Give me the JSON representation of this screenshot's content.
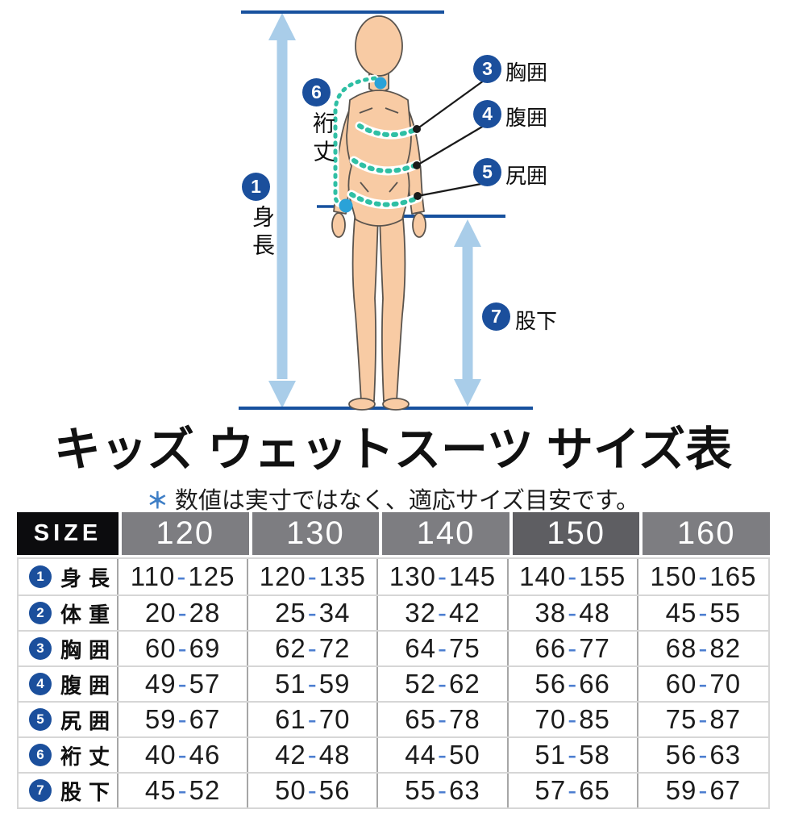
{
  "diagram": {
    "annotations": {
      "height": {
        "num": "1",
        "label": "身長"
      },
      "sleeve": {
        "num": "6",
        "label": "裄丈"
      },
      "chest": {
        "num": "3",
        "label": "胸囲"
      },
      "waist": {
        "num": "4",
        "label": "腹囲"
      },
      "hip": {
        "num": "5",
        "label": "尻囲"
      },
      "inseam": {
        "num": "7",
        "label": "股下"
      }
    },
    "colors": {
      "badge_navy": "#1b4f9c",
      "guide_line_navy": "#17519e",
      "arrow_light_blue": "#a9cde9",
      "measure_dotted_teal": "#2fbfa4",
      "marker_dot_blue": "#2aa2d8",
      "skin": "#f8cba4"
    }
  },
  "title": "キッズ ウェットスーツ サイズ表",
  "note": {
    "mark": "＊",
    "text": "数値は実寸ではなく、適応サイズ目安です。"
  },
  "chart_data": {
    "type": "table",
    "title": "キッズ ウェットスーツ サイズ表",
    "header": {
      "label": "SIZE",
      "sizes": [
        "120",
        "130",
        "140",
        "150",
        "160"
      ]
    },
    "highlighted_column": "150",
    "rows": [
      {
        "num": "1",
        "label": "身長",
        "values": [
          "110-125",
          "120-135",
          "130-145",
          "140-155",
          "150-165"
        ]
      },
      {
        "num": "2",
        "label": "体重",
        "values": [
          "20-28",
          "25-34",
          "32-42",
          "38-48",
          "45-55"
        ]
      },
      {
        "num": "3",
        "label": "胸囲",
        "values": [
          "60-69",
          "62-72",
          "64-75",
          "66-77",
          "68-82"
        ]
      },
      {
        "num": "4",
        "label": "腹囲",
        "values": [
          "49-57",
          "51-59",
          "52-62",
          "56-66",
          "60-70"
        ]
      },
      {
        "num": "5",
        "label": "尻囲",
        "values": [
          "59-67",
          "61-70",
          "65-78",
          "70-85",
          "75-87"
        ]
      },
      {
        "num": "6",
        "label": "裄丈",
        "values": [
          "40-46",
          "42-48",
          "44-50",
          "51-58",
          "56-63"
        ]
      },
      {
        "num": "7",
        "label": "股下",
        "values": [
          "45-52",
          "50-56",
          "55-63",
          "57-65",
          "59-67"
        ]
      }
    ],
    "colors": {
      "header_bg": "#7d7d81",
      "header_highlight_bg": "#5e5e62",
      "size_header_bg": "#0c0c0e",
      "range_dash_blue": "#4c7ed0"
    }
  }
}
